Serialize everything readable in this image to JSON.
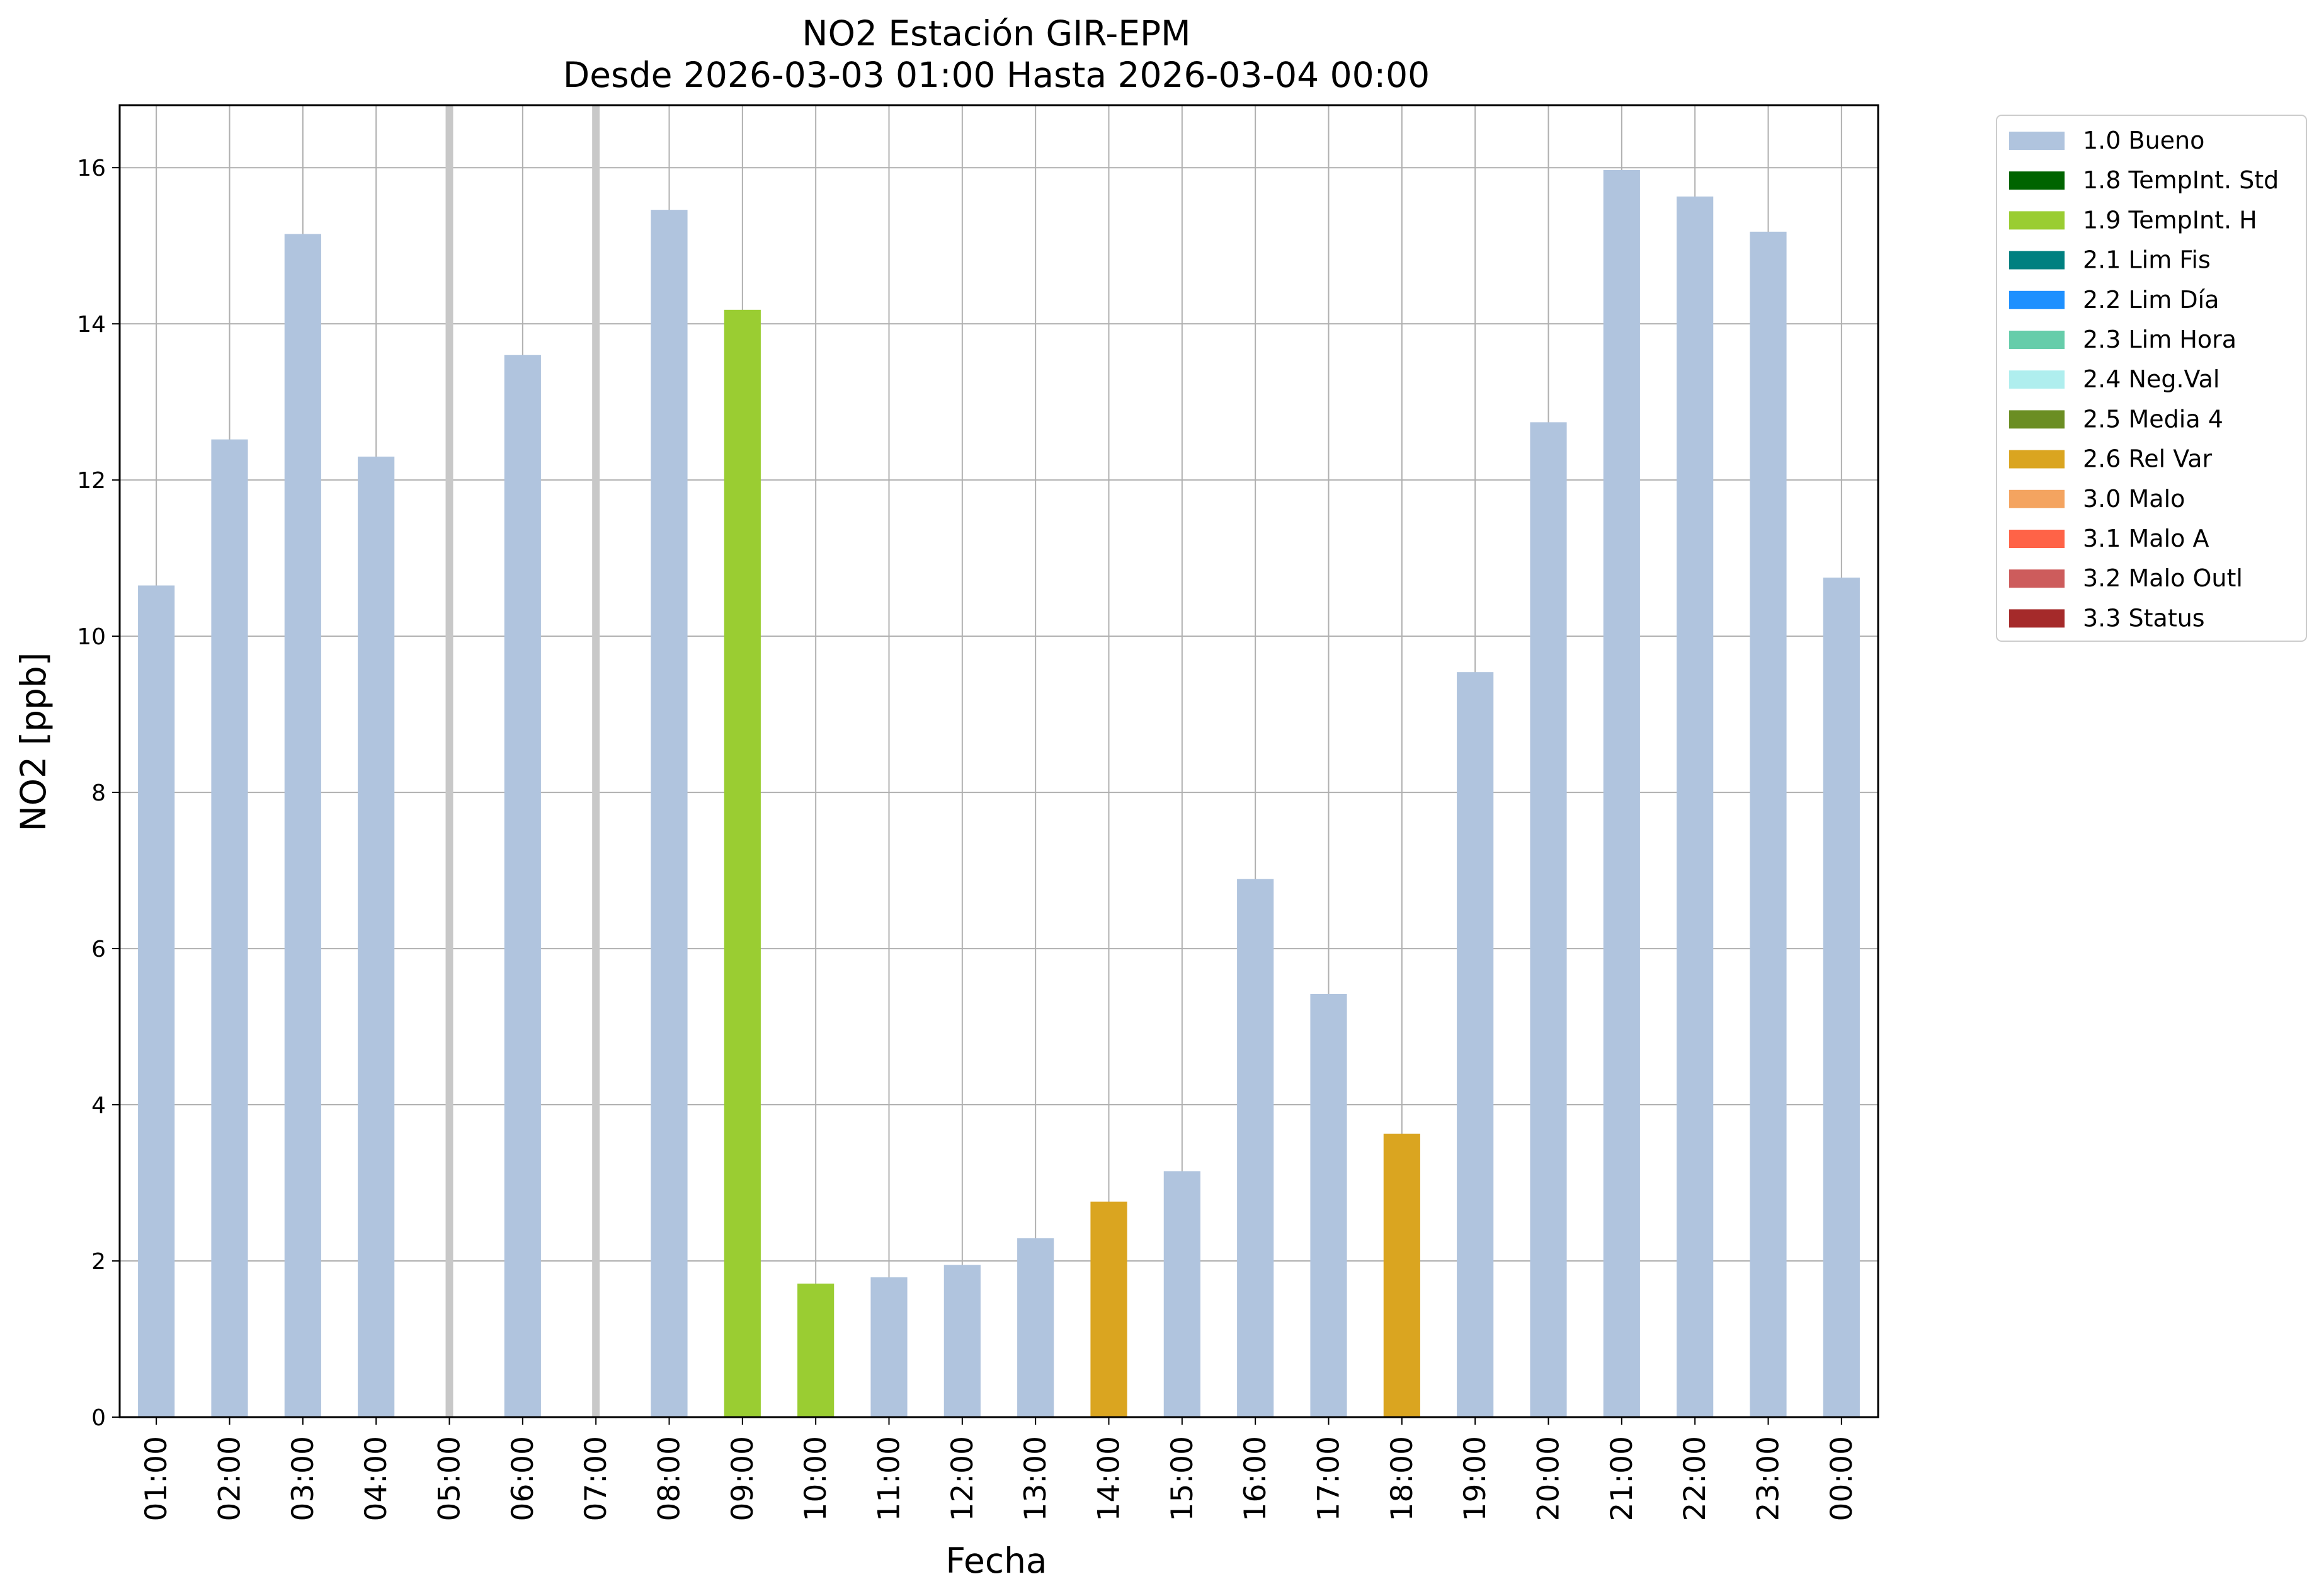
{
  "chart_data": {
    "type": "bar",
    "title": "NO2 Estación GIR-EPM",
    "subtitle": "Desde 2026-03-03 01:00 Hasta 2026-03-04 00:00",
    "xlabel": "Fecha",
    "ylabel": "NO2 [ppb]",
    "ylim": [
      0,
      16.8
    ],
    "yticks": [
      0,
      2,
      4,
      6,
      8,
      10,
      12,
      14,
      16
    ],
    "grid": true,
    "legend_position": "outside-top-right",
    "categories": [
      "01:00",
      "02:00",
      "03:00",
      "04:00",
      "05:00",
      "06:00",
      "07:00",
      "08:00",
      "09:00",
      "10:00",
      "11:00",
      "12:00",
      "13:00",
      "14:00",
      "15:00",
      "16:00",
      "17:00",
      "18:00",
      "19:00",
      "20:00",
      "21:00",
      "22:00",
      "23:00",
      "00:00"
    ],
    "values": [
      10.65,
      12.52,
      15.15,
      12.3,
      null,
      13.6,
      null,
      15.46,
      14.18,
      1.71,
      1.79,
      1.95,
      2.29,
      2.76,
      3.15,
      6.89,
      5.42,
      3.63,
      9.54,
      12.74,
      15.97,
      15.63,
      15.18,
      10.75
    ],
    "flags": [
      "1.0 Bueno",
      "1.0 Bueno",
      "1.0 Bueno",
      "1.0 Bueno",
      null,
      "1.0 Bueno",
      null,
      "1.0 Bueno",
      "1.9 TempInt. H",
      "1.9 TempInt. H",
      "1.0 Bueno",
      "1.0 Bueno",
      "1.0 Bueno",
      "2.6 Rel Var",
      "1.0 Bueno",
      "1.0 Bueno",
      "1.0 Bueno",
      "2.6 Rel Var",
      "1.0 Bueno",
      "1.0 Bueno",
      "1.0 Bueno",
      "1.0 Bueno",
      "1.0 Bueno",
      "1.0 Bueno"
    ],
    "missing_markers": [
      "05:00",
      "07:00"
    ],
    "missing_marker_color": "#c8c8c8",
    "legend": [
      {
        "label": "1.0 Bueno",
        "color": "#b0c4de"
      },
      {
        "label": "1.8 TempInt. Std",
        "color": "#006400"
      },
      {
        "label": "1.9 TempInt. H",
        "color": "#9acd32"
      },
      {
        "label": "2.1 Lim Fis",
        "color": "#008080"
      },
      {
        "label": "2.2 Lim Día",
        "color": "#1e90ff"
      },
      {
        "label": "2.3 Lim Hora",
        "color": "#66cdaa"
      },
      {
        "label": "2.4 Neg.Val",
        "color": "#afeeee"
      },
      {
        "label": "2.5 Media 4",
        "color": "#6b8e23"
      },
      {
        "label": "2.6 Rel Var",
        "color": "#daa520"
      },
      {
        "label": "3.0 Malo",
        "color": "#f4a460"
      },
      {
        "label": "3.1 Malo A",
        "color": "#ff6347"
      },
      {
        "label": "3.2 Malo Outl",
        "color": "#cd5c5c"
      },
      {
        "label": "3.3 Status",
        "color": "#a52a2a"
      }
    ]
  }
}
